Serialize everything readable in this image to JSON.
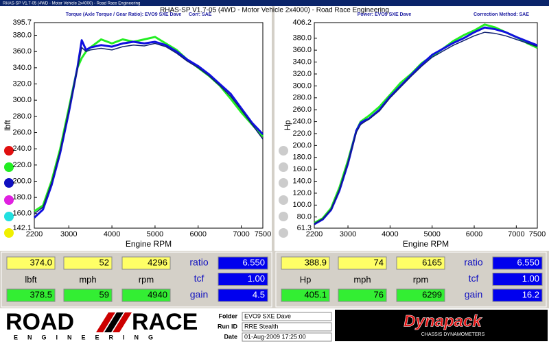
{
  "header": {
    "window_title": "RHAS-SP V1.7-05  (4WD - Motor Vehicle 2x4000) - Road Race Engineering",
    "title": "RHAS-SP V1.7-05  (4WD - Motor Vehicle 2x4000) - Road Race Engineering"
  },
  "chart_data": [
    {
      "type": "line",
      "title": "Torque (Axle Torque / Gear Ratio): EVO9 SXE Dave",
      "note": "Corr: SAE",
      "x_label": "Engine RPM",
      "y_label": "lbft",
      "x": [
        2200,
        2400,
        2600,
        2800,
        3000,
        3200,
        3300,
        3400,
        3500,
        3750,
        4000,
        4250,
        4500,
        4750,
        5000,
        5250,
        5500,
        5750,
        6000,
        6250,
        6500,
        6750,
        7000,
        7250,
        7500
      ],
      "xlim": [
        2200,
        7500
      ],
      "xticks": [
        2200,
        3000,
        4000,
        5000,
        6000,
        7000,
        7500
      ],
      "ylim": [
        142.1,
        395.7
      ],
      "yticks": [
        142.1,
        {
          "value": 160,
          "label": "160.0"
        },
        {
          "value": 180,
          "label": "180.0"
        },
        {
          "value": 200,
          "label": "200.0"
        },
        {
          "value": 220,
          "label": "220.0"
        },
        {
          "value": 240,
          "label": "240.0"
        },
        {
          "value": 260,
          "label": "260.0"
        },
        {
          "value": 280,
          "label": "280.0"
        },
        {
          "value": 300,
          "label": "300.0"
        },
        {
          "value": 320,
          "label": "320.0"
        },
        {
          "value": 340,
          "label": "340.0"
        },
        {
          "value": 360,
          "label": "360.0"
        },
        {
          "value": 380,
          "label": "380.0"
        },
        395.7
      ],
      "series": [
        {
          "color": "#22ee22",
          "values": [
            163,
            170,
            200,
            240,
            290,
            340,
            352,
            360,
            365,
            375,
            370,
            375,
            372,
            375,
            378,
            370,
            362,
            350,
            340,
            330,
            318,
            302,
            285,
            270,
            255
          ]
        },
        {
          "color": "#1010e0",
          "values": [
            155,
            165,
            195,
            235,
            285,
            340,
            374,
            362,
            365,
            368,
            366,
            370,
            372,
            370,
            372,
            368,
            360,
            350,
            342,
            332,
            320,
            308,
            290,
            272,
            258
          ]
        },
        {
          "color": "#102070",
          "values": [
            160,
            168,
            198,
            238,
            288,
            338,
            365,
            360,
            362,
            364,
            362,
            366,
            368,
            367,
            370,
            366,
            358,
            348,
            340,
            330,
            318,
            305,
            288,
            270,
            252
          ]
        }
      ]
    },
    {
      "type": "line",
      "title": "Power: EVO9 SXE Dave",
      "note": "Correction Method: SAE",
      "x_label": "Engine RPM",
      "y_label": "Hp",
      "x": [
        2200,
        2400,
        2600,
        2800,
        3000,
        3200,
        3300,
        3400,
        3500,
        3750,
        4000,
        4250,
        4500,
        4750,
        5000,
        5250,
        5500,
        5750,
        6000,
        6250,
        6500,
        6750,
        7000,
        7250,
        7500
      ],
      "xlim": [
        2200,
        7500
      ],
      "xticks": [
        2200,
        3000,
        4000,
        5000,
        6000,
        7000,
        7500
      ],
      "ylim": [
        61.3,
        406.2
      ],
      "yticks": [
        61.3,
        {
          "value": 80,
          "label": "80.0"
        },
        {
          "value": 100,
          "label": "100.0"
        },
        {
          "value": 120,
          "label": "120.0"
        },
        {
          "value": 140,
          "label": "140.0"
        },
        {
          "value": 160,
          "label": "160.0"
        },
        {
          "value": 180,
          "label": "180.0"
        },
        {
          "value": 200,
          "label": "200.0"
        },
        {
          "value": 220,
          "label": "220.0"
        },
        {
          "value": 240,
          "label": "240.0"
        },
        {
          "value": 260,
          "label": "260.0"
        },
        {
          "value": 280,
          "label": "280.0"
        },
        {
          "value": 300,
          "label": "300.0"
        },
        {
          "value": 320,
          "label": "320.0"
        },
        {
          "value": 340,
          "label": "340.0"
        },
        {
          "value": 360,
          "label": "360.0"
        },
        {
          "value": 380,
          "label": "380.0"
        },
        406.2
      ],
      "series": [
        {
          "color": "#22ee22",
          "values": [
            70,
            78,
            95,
            130,
            175,
            225,
            240,
            245,
            250,
            265,
            285,
            305,
            320,
            338,
            350,
            362,
            375,
            385,
            393,
            403,
            398,
            390,
            382,
            372,
            364
          ]
        },
        {
          "color": "#1010e0",
          "values": [
            68,
            76,
            92,
            125,
            170,
            225,
            238,
            242,
            245,
            260,
            282,
            300,
            318,
            336,
            352,
            362,
            372,
            380,
            390,
            398,
            395,
            390,
            382,
            375,
            368
          ]
        },
        {
          "color": "#102070",
          "values": [
            69,
            77,
            93,
            127,
            172,
            222,
            235,
            240,
            244,
            258,
            280,
            298,
            316,
            333,
            348,
            358,
            368,
            376,
            384,
            390,
            388,
            384,
            378,
            372,
            366
          ]
        }
      ]
    }
  ],
  "readouts": [
    {
      "top": [
        "374.0",
        "52",
        "4296"
      ],
      "labels": [
        "lbft",
        "mph",
        "rpm"
      ],
      "bottom": [
        "378.5",
        "59",
        "4940"
      ],
      "params": [
        {
          "label": "ratio",
          "value": "6.550"
        },
        {
          "label": "tcf",
          "value": "1.00"
        },
        {
          "label": "gain",
          "value": "4.5"
        }
      ]
    },
    {
      "top": [
        "388.9",
        "74",
        "6165"
      ],
      "labels": [
        "Hp",
        "mph",
        "rpm"
      ],
      "bottom": [
        "405.1",
        "76",
        "6299"
      ],
      "params": [
        {
          "label": "ratio",
          "value": "6.550"
        },
        {
          "label": "tcf",
          "value": "1.00"
        },
        {
          "label": "gain",
          "value": "16.2"
        }
      ]
    }
  ],
  "footer": {
    "logo_left": "ROAD",
    "logo_right": "RACE",
    "logo_sub": "ENGINEERING",
    "fields": [
      {
        "label": "Folder",
        "value": "EVO9 SXE Dave"
      },
      {
        "label": "Run ID",
        "value": "RRE Stealth"
      },
      {
        "label": "Date",
        "value": "01-Aug-2009  17:25:00"
      }
    ],
    "brand": "Dynapack",
    "brand_sub": "CHASSIS DYNAMOMETERS"
  }
}
